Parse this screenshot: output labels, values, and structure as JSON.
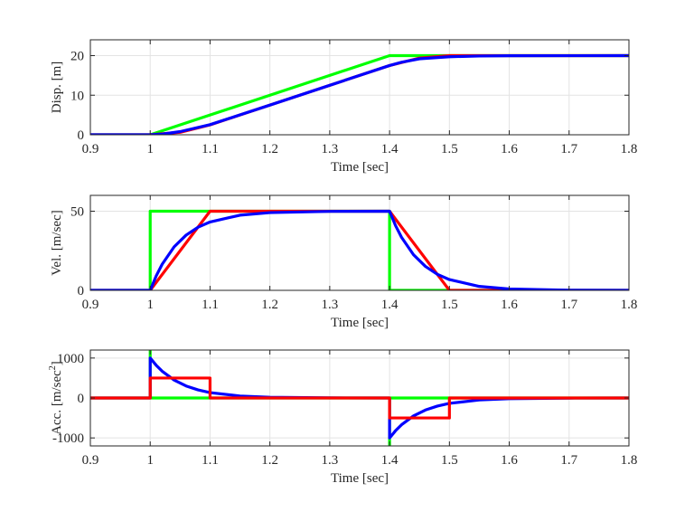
{
  "chart_data": [
    {
      "type": "line",
      "xlabel": "Time [sec]",
      "ylabel": "Disp. [m]",
      "xlim": [
        0.9,
        1.8
      ],
      "ylim": [
        0,
        24
      ],
      "xticks": [
        "0.9",
        "1",
        "1.1",
        "1.2",
        "1.3",
        "1.4",
        "1.5",
        "1.6",
        "1.7",
        "1.8"
      ],
      "yticks": [
        "0",
        "10",
        "20"
      ],
      "ytick_values": [
        0,
        10,
        20
      ],
      "grid": true,
      "series": [
        {
          "name": "green",
          "color": "#00ff00",
          "x": [
            0.9,
            1.0,
            1.4,
            1.8
          ],
          "y": [
            0,
            0,
            20,
            20
          ]
        },
        {
          "name": "red",
          "color": "#ff0000",
          "x": [
            0.9,
            1.0,
            1.05,
            1.1,
            1.4,
            1.45,
            1.5,
            1.8
          ],
          "y": [
            0,
            0,
            0.625,
            2.5,
            17.5,
            19.375,
            20,
            20
          ]
        },
        {
          "name": "blue",
          "color": "#0000ff",
          "x": [
            0.9,
            1.0,
            1.02,
            1.05,
            1.1,
            1.2,
            1.3,
            1.4,
            1.42,
            1.45,
            1.5,
            1.55,
            1.6,
            1.8
          ],
          "y": [
            0,
            0,
            0.17,
            0.8,
            2.56,
            7.5,
            12.5,
            17.5,
            18.33,
            19.2,
            19.72,
            19.9,
            19.97,
            20
          ]
        }
      ]
    },
    {
      "type": "line",
      "xlabel": "Time [sec]",
      "ylabel": "Vel. [m/sec]",
      "xlim": [
        0.9,
        1.8
      ],
      "ylim": [
        0,
        60
      ],
      "xticks": [
        "0.9",
        "1",
        "1.1",
        "1.2",
        "1.3",
        "1.4",
        "1.5",
        "1.6",
        "1.7",
        "1.8"
      ],
      "yticks": [
        "0",
        "50"
      ],
      "ytick_values": [
        0,
        50
      ],
      "grid": true,
      "series": [
        {
          "name": "green",
          "color": "#00ff00",
          "x": [
            0.9,
            1.0,
            1.0,
            1.4,
            1.4,
            1.8
          ],
          "y": [
            0,
            0,
            50,
            50,
            0,
            0
          ]
        },
        {
          "name": "red",
          "color": "#ff0000",
          "x": [
            0.9,
            1.0,
            1.1,
            1.4,
            1.5,
            1.8
          ],
          "y": [
            0,
            0,
            50,
            50,
            0,
            0
          ]
        },
        {
          "name": "blue",
          "color": "#0000ff",
          "x": [
            0.9,
            1.0,
            1.01,
            1.02,
            1.04,
            1.06,
            1.08,
            1.1,
            1.15,
            1.2,
            1.3,
            1.4,
            1.41,
            1.42,
            1.44,
            1.46,
            1.48,
            1.5,
            1.55,
            1.6,
            1.7,
            1.8
          ],
          "y": [
            0,
            0,
            9.1,
            16.5,
            27.5,
            34.9,
            39.9,
            43.2,
            47.5,
            49.1,
            49.9,
            50,
            40.9,
            33.5,
            22.5,
            15.1,
            10.1,
            6.8,
            2.5,
            0.9,
            0.1,
            0
          ]
        }
      ]
    },
    {
      "type": "line",
      "xlabel": "Time [sec]",
      "ylabel": "Acc. [m/sec",
      "ylabel_sup": "2",
      "ylabel_close": "]",
      "xlim": [
        0.9,
        1.8
      ],
      "ylim": [
        -1200,
        1200
      ],
      "xticks": [
        "0.9",
        "1",
        "1.1",
        "1.2",
        "1.3",
        "1.4",
        "1.5",
        "1.6",
        "1.7",
        "1.8"
      ],
      "yticks": [
        "-1000",
        "0",
        "1000"
      ],
      "ytick_values": [
        -1000,
        0,
        1000
      ],
      "grid": true,
      "series": [
        {
          "name": "green",
          "color": "#00ff00",
          "x": [
            0.9,
            1.0,
            1.0,
            1.0,
            1.4,
            1.4,
            1.4,
            1.8
          ],
          "y": [
            0,
            0,
            1200,
            0,
            0,
            -1200,
            0,
            0
          ]
        },
        {
          "name": "blue",
          "color": "#0000ff",
          "x": [
            0.9,
            1.0,
            1.0,
            1.01,
            1.02,
            1.04,
            1.06,
            1.08,
            1.1,
            1.15,
            1.2,
            1.3,
            1.4,
            1.4,
            1.41,
            1.42,
            1.44,
            1.46,
            1.48,
            1.5,
            1.55,
            1.6,
            1.7,
            1.8
          ],
          "y": [
            0,
            0,
            1000,
            819,
            670,
            449,
            301,
            202,
            135,
            50,
            18,
            2,
            0,
            -1000,
            -819,
            -670,
            -449,
            -301,
            -202,
            -135,
            -50,
            -18,
            -2,
            0
          ]
        },
        {
          "name": "red",
          "color": "#ff0000",
          "x": [
            0.9,
            1.0,
            1.0,
            1.1,
            1.1,
            1.4,
            1.4,
            1.5,
            1.5,
            1.8
          ],
          "y": [
            0,
            0,
            500,
            500,
            0,
            0,
            -500,
            -500,
            0,
            0
          ]
        }
      ]
    }
  ]
}
